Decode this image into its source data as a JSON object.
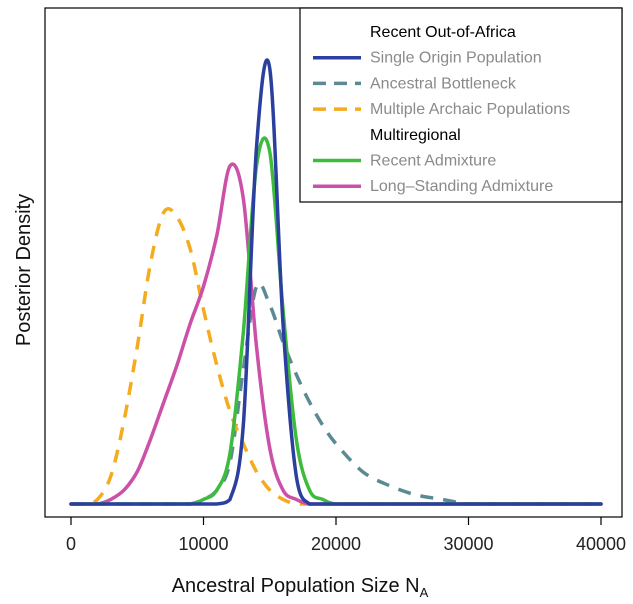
{
  "chart_data": {
    "type": "line",
    "xlabel": "Ancestral Population Size N",
    "xlabel_subscript": "A",
    "ylabel": "Posterior Density",
    "xlim": [
      0,
      40000
    ],
    "ylim": [
      0,
      1
    ],
    "xticks": [
      0,
      10000,
      20000,
      30000,
      40000
    ],
    "grid": false,
    "legend_position": "top-right",
    "legend": [
      {
        "kind": "header",
        "label": "Recent Out-of-Africa"
      },
      {
        "kind": "series",
        "label": "Single Origin Population",
        "series": 0
      },
      {
        "kind": "series",
        "label": "Ancestral Bottleneck",
        "series": 1
      },
      {
        "kind": "series",
        "label": "Multiple Archaic Populations",
        "series": 2
      },
      {
        "kind": "header",
        "label": "Multiregional"
      },
      {
        "kind": "series",
        "label": "Recent Admixture",
        "series": 3
      },
      {
        "kind": "series",
        "label": "Long–Standing Admixture",
        "series": 4
      }
    ],
    "x": [
      0,
      1000,
      2000,
      3000,
      4000,
      5000,
      6000,
      7000,
      8000,
      9000,
      10000,
      11000,
      12000,
      13000,
      14000,
      15000,
      16000,
      17000,
      18000,
      19000,
      20000,
      22000,
      24000,
      26000,
      28000,
      30000,
      32000,
      34000,
      36000,
      38000,
      40000
    ],
    "series": [
      {
        "name": "Single Origin Population",
        "color": "#2b3f9e",
        "dash": "solid",
        "values": [
          0,
          0,
          0,
          0,
          0,
          0,
          0,
          0,
          0,
          0,
          0,
          0,
          0.01,
          0.17,
          0.77,
          0.94,
          0.39,
          0.06,
          0,
          0,
          0,
          0,
          0,
          0,
          0,
          0,
          0,
          0,
          0,
          0,
          0
        ]
      },
      {
        "name": "Ancestral Bottleneck",
        "color": "#5b8a94",
        "dash": "dashed",
        "values": [
          0,
          0,
          0,
          0,
          0,
          0,
          0,
          0,
          0,
          0,
          0.01,
          0.03,
          0.09,
          0.29,
          0.47,
          0.43,
          0.35,
          0.28,
          0.22,
          0.17,
          0.13,
          0.07,
          0.04,
          0.02,
          0.01,
          0,
          0,
          0,
          0,
          0,
          0
        ]
      },
      {
        "name": "Multiple Archaic Populations",
        "color": "#f5ab1e",
        "dash": "dashed",
        "values": [
          0,
          0,
          0.01,
          0.06,
          0.18,
          0.34,
          0.52,
          0.63,
          0.62,
          0.55,
          0.42,
          0.3,
          0.2,
          0.13,
          0.07,
          0.03,
          0.01,
          0,
          0,
          0,
          0,
          0,
          0,
          0,
          0,
          0,
          0,
          0,
          0,
          0,
          0
        ]
      },
      {
        "name": "Recent Admixture",
        "color": "#3dbb3d",
        "dash": "solid",
        "values": [
          0,
          0,
          0,
          0,
          0,
          0,
          0,
          0,
          0,
          0,
          0.01,
          0.03,
          0.11,
          0.37,
          0.73,
          0.76,
          0.42,
          0.14,
          0.03,
          0.01,
          0,
          0,
          0,
          0,
          0,
          0,
          0,
          0,
          0,
          0,
          0
        ]
      },
      {
        "name": "Long–Standing Admixture",
        "color": "#cc4fa8",
        "dash": "solid",
        "values": [
          0,
          0,
          0,
          0.01,
          0.03,
          0.07,
          0.14,
          0.22,
          0.3,
          0.39,
          0.47,
          0.58,
          0.73,
          0.66,
          0.34,
          0.12,
          0.03,
          0.01,
          0,
          0,
          0,
          0,
          0,
          0,
          0,
          0,
          0,
          0,
          0,
          0,
          0
        ]
      }
    ]
  }
}
